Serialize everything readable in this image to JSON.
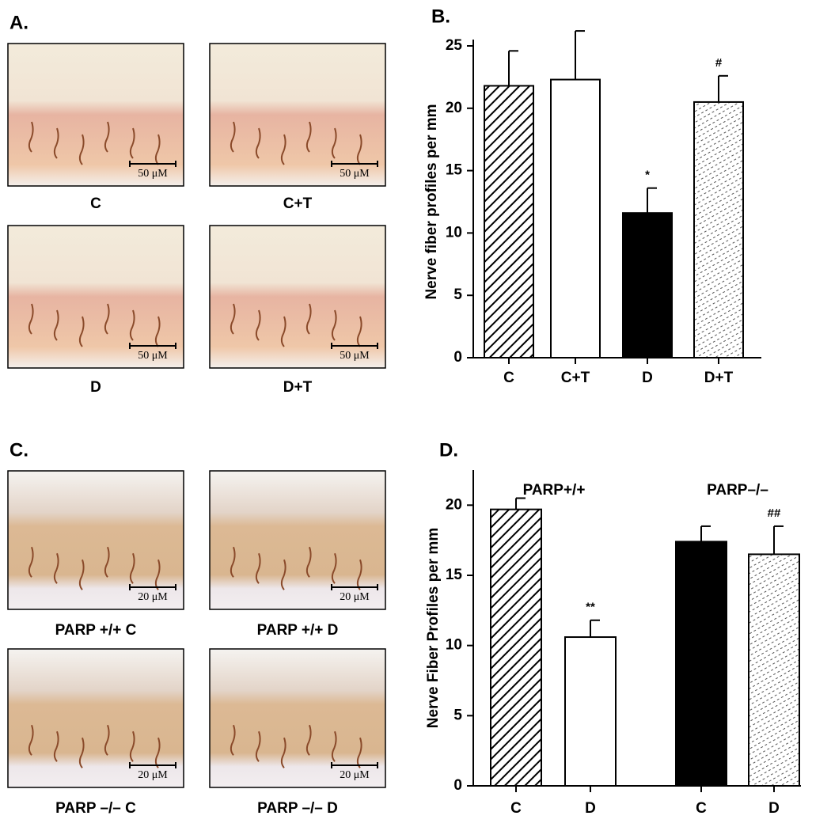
{
  "panel_a": {
    "label": "A.",
    "images": [
      {
        "caption": "C",
        "scale_bar": "50 μM"
      },
      {
        "caption": "C+T",
        "scale_bar": "50 μM"
      },
      {
        "caption": "D",
        "scale_bar": "50 μM"
      },
      {
        "caption": "D+T",
        "scale_bar": "50 μM"
      }
    ]
  },
  "panel_c": {
    "label": "C.",
    "images": [
      {
        "caption": "PARP +/+ C",
        "scale_bar": "20 μM"
      },
      {
        "caption": "PARP +/+ D",
        "scale_bar": "20 μM"
      },
      {
        "caption": "PARP –/– C",
        "scale_bar": "20 μM"
      },
      {
        "caption": "PARP –/– D",
        "scale_bar": "20 μM"
      }
    ]
  },
  "chart_data": [
    {
      "type": "bar",
      "panel_label": "B.",
      "ylabel": "Nerve fiber profiles per mm",
      "categories": [
        "C",
        "C+T",
        "D",
        "D+T"
      ],
      "values": [
        21.8,
        22.3,
        11.6,
        20.5
      ],
      "errors": [
        2.8,
        3.9,
        2.0,
        2.1
      ],
      "annotations": [
        null,
        null,
        "*",
        "#"
      ],
      "fills": [
        "hatch",
        "white",
        "black",
        "dots"
      ],
      "ylim": [
        0,
        25
      ],
      "yticks": [
        0,
        5,
        10,
        15,
        20,
        25
      ]
    },
    {
      "type": "bar",
      "panel_label": "D.",
      "ylabel": "Nerve Fiber Profiles per mm",
      "groups": [
        "PARP+/+",
        "PARP–/–"
      ],
      "categories": [
        "C",
        "D",
        "C",
        "D"
      ],
      "values": [
        19.7,
        10.6,
        17.4,
        16.5
      ],
      "errors": [
        0.8,
        1.2,
        1.1,
        2.0
      ],
      "annotations": [
        null,
        "**",
        null,
        "##"
      ],
      "fills": [
        "hatch",
        "white",
        "black",
        "dots"
      ],
      "ylim": [
        0,
        22.5
      ],
      "yticks": [
        0,
        5,
        10,
        15,
        20
      ]
    }
  ]
}
